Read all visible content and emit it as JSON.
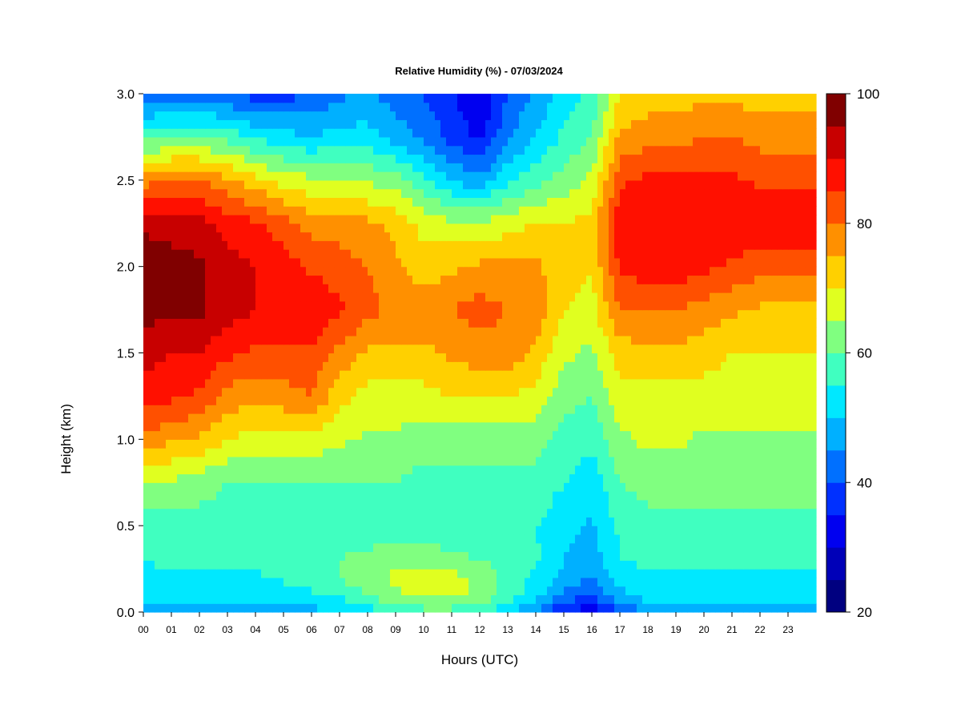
{
  "chart_data": {
    "type": "heatmap",
    "title": "Relative Humidity (%) - 07/03/2024",
    "xlabel": "Hours (UTC)",
    "ylabel": "Height (km)",
    "xlim": [
      0,
      24
    ],
    "ylim": [
      0.0,
      3.0
    ],
    "x_ticks": [
      "00",
      "01",
      "02",
      "03",
      "04",
      "05",
      "06",
      "07",
      "08",
      "09",
      "10",
      "11",
      "12",
      "13",
      "14",
      "15",
      "16",
      "17",
      "18",
      "19",
      "20",
      "21",
      "22",
      "23"
    ],
    "y_ticks": [
      "0.0",
      "0.5",
      "1.0",
      "1.5",
      "2.0",
      "2.5",
      "3.0"
    ],
    "colorbar": {
      "min": 20,
      "max": 100,
      "step": 5,
      "tick_labels": [
        "20",
        "40",
        "60",
        "80",
        "100"
      ],
      "colors": [
        "#000080",
        "#0000b8",
        "#0000f0",
        "#0030ff",
        "#0070ff",
        "#00b0ff",
        "#00e8ff",
        "#40ffc0",
        "#80ff80",
        "#e0ff20",
        "#ffd000",
        "#ff9000",
        "#ff5000",
        "#ff1000",
        "#c80000",
        "#800000"
      ]
    },
    "heights_km": [
      0.0,
      0.1,
      0.2,
      0.3,
      0.5,
      0.75,
      1.0,
      1.25,
      1.5,
      1.75,
      2.0,
      2.25,
      2.5,
      2.75,
      3.0
    ],
    "hours": [
      0,
      1,
      2,
      3,
      4,
      5,
      6,
      7,
      8,
      9,
      10,
      11,
      12,
      13,
      14,
      15,
      16,
      17,
      18,
      19,
      20,
      21,
      22,
      23,
      24
    ],
    "values": [
      [
        46,
        48,
        48,
        48,
        47,
        47,
        48,
        50,
        52,
        56,
        58,
        58,
        56,
        52,
        44,
        35,
        32,
        40,
        46,
        46,
        46,
        46,
        46,
        46,
        46
      ],
      [
        52,
        52,
        52,
        52,
        52,
        52,
        54,
        56,
        60,
        64,
        66,
        66,
        64,
        58,
        52,
        44,
        40,
        48,
        52,
        52,
        52,
        52,
        52,
        52,
        52
      ],
      [
        54,
        54,
        54,
        54,
        54,
        56,
        58,
        60,
        64,
        66,
        67,
        67,
        64,
        58,
        54,
        48,
        45,
        52,
        54,
        54,
        54,
        54,
        54,
        54,
        54
      ],
      [
        55,
        56,
        56,
        56,
        56,
        58,
        60,
        60,
        62,
        64,
        64,
        62,
        60,
        58,
        56,
        50,
        47,
        55,
        56,
        56,
        56,
        56,
        56,
        56,
        56
      ],
      [
        58,
        58,
        58,
        58,
        56,
        56,
        56,
        56,
        56,
        56,
        55,
        55,
        55,
        55,
        55,
        52,
        49,
        56,
        58,
        58,
        58,
        58,
        58,
        58,
        58
      ],
      [
        64,
        64,
        62,
        60,
        60,
        60,
        60,
        60,
        60,
        60,
        58,
        58,
        58,
        58,
        58,
        55,
        52,
        60,
        62,
        62,
        62,
        62,
        62,
        62,
        62
      ],
      [
        78,
        76,
        74,
        70,
        68,
        68,
        68,
        66,
        64,
        64,
        62,
        62,
        62,
        62,
        62,
        58,
        56,
        64,
        66,
        66,
        64,
        64,
        64,
        64,
        64
      ],
      [
        88,
        86,
        84,
        78,
        76,
        78,
        80,
        72,
        68,
        68,
        68,
        70,
        70,
        70,
        68,
        62,
        60,
        68,
        68,
        68,
        68,
        68,
        68,
        68,
        68
      ],
      [
        92,
        90,
        90,
        86,
        84,
        84,
        84,
        78,
        74,
        74,
        74,
        76,
        78,
        78,
        74,
        66,
        64,
        72,
        74,
        74,
        72,
        70,
        70,
        70,
        70
      ],
      [
        97,
        96,
        96,
        92,
        90,
        90,
        90,
        86,
        82,
        78,
        78,
        80,
        82,
        80,
        78,
        70,
        68,
        80,
        80,
        80,
        78,
        76,
        74,
        74,
        74
      ],
      [
        98,
        97,
        96,
        92,
        90,
        88,
        84,
        82,
        80,
        76,
        72,
        74,
        76,
        76,
        76,
        72,
        70,
        86,
        88,
        88,
        86,
        84,
        82,
        82,
        82
      ],
      [
        94,
        93,
        92,
        88,
        86,
        82,
        78,
        78,
        76,
        74,
        68,
        66,
        66,
        68,
        70,
        70,
        72,
        88,
        90,
        90,
        90,
        90,
        88,
        88,
        88
      ],
      [
        78,
        80,
        80,
        76,
        72,
        68,
        66,
        66,
        64,
        62,
        56,
        50,
        46,
        54,
        58,
        62,
        66,
        84,
        86,
        86,
        86,
        86,
        84,
        84,
        84
      ],
      [
        58,
        60,
        60,
        58,
        54,
        52,
        50,
        52,
        52,
        48,
        44,
        38,
        34,
        44,
        50,
        56,
        60,
        76,
        78,
        78,
        80,
        80,
        78,
        78,
        78
      ],
      [
        40,
        42,
        42,
        40,
        38,
        38,
        40,
        44,
        46,
        42,
        40,
        36,
        30,
        40,
        46,
        52,
        56,
        70,
        72,
        72,
        74,
        74,
        72,
        72,
        72
      ]
    ]
  }
}
